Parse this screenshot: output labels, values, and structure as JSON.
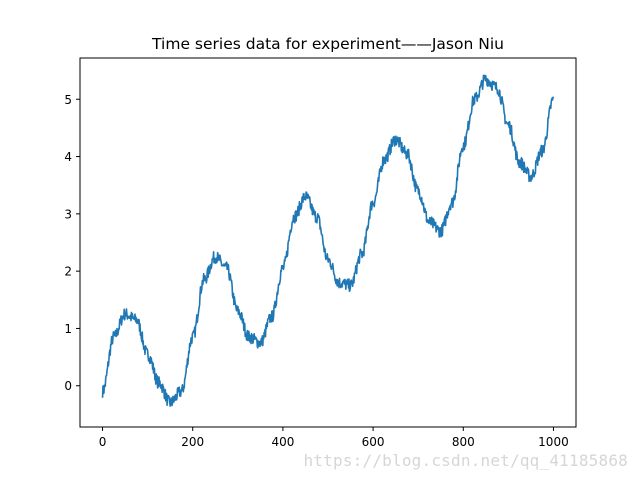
{
  "chart_data": {
    "type": "line",
    "title": "Time series data for experiment——Jason Niu",
    "xlabel": "",
    "ylabel": "",
    "xlim": [
      -50,
      1050
    ],
    "ylim": [
      -0.72,
      5.72
    ],
    "xticks": [
      0,
      200,
      400,
      600,
      800,
      1000
    ],
    "yticks": [
      0,
      1,
      2,
      3,
      4,
      5
    ],
    "grid": false,
    "legend": "none",
    "color": "#1f77b4",
    "n_points": 1000,
    "series": [
      {
        "x": [
          0,
          25,
          50,
          75,
          100,
          125,
          150,
          175,
          200,
          225,
          250,
          275,
          300,
          325,
          350,
          375,
          400,
          425,
          450,
          475,
          500,
          525,
          550,
          575,
          600,
          625,
          650,
          675,
          700,
          725,
          750,
          775,
          800,
          825,
          850,
          875,
          900,
          925,
          950,
          975,
          1000
        ],
        "y": [
          -0.1,
          0.85,
          1.25,
          1.15,
          0.55,
          0.05,
          -0.3,
          -0.1,
          0.85,
          1.85,
          2.25,
          2.05,
          1.3,
          0.85,
          0.75,
          1.2,
          2.05,
          2.95,
          3.3,
          2.95,
          2.2,
          1.8,
          1.75,
          2.3,
          3.2,
          3.95,
          4.3,
          4.05,
          3.4,
          2.85,
          2.7,
          3.2,
          4.2,
          5.0,
          5.35,
          5.2,
          4.55,
          3.9,
          3.65,
          4.1,
          5.0
        ]
      }
    ]
  },
  "watermark": "https://blog.csdn.net/qq_41185868"
}
